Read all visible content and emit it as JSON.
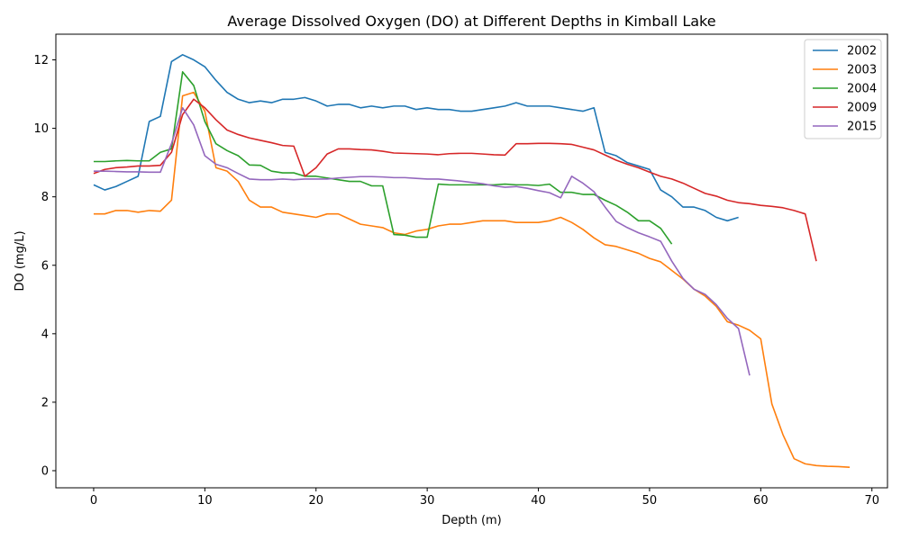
{
  "chart_data": {
    "type": "line",
    "title": "Average Dissolved Oxygen (DO) at Different Depths in Kimball Lake",
    "xlabel": "Depth (m)",
    "ylabel": "DO (mg/L)",
    "xlim": [
      -3.4,
      71.4
    ],
    "ylim": [
      -0.5,
      12.75
    ],
    "xticks": [
      0,
      10,
      20,
      30,
      40,
      50,
      60,
      70
    ],
    "yticks": [
      0,
      2,
      4,
      6,
      8,
      10,
      12
    ],
    "grid": false,
    "legend_position": "top-right",
    "series": [
      {
        "name": "2002",
        "color": "#1f77b4",
        "x": [
          0,
          1,
          2,
          3,
          4,
          5,
          6,
          7,
          8,
          9,
          10,
          11,
          12,
          13,
          14,
          15,
          16,
          17,
          18,
          19,
          20,
          21,
          22,
          23,
          24,
          25,
          26,
          27,
          28,
          29,
          30,
          31,
          32,
          33,
          34,
          35,
          36,
          37,
          38,
          39,
          40,
          41,
          42,
          43,
          44,
          45,
          46,
          47,
          48,
          49,
          50,
          51,
          52,
          53,
          54,
          55,
          56,
          57,
          58
        ],
        "y": [
          8.35,
          8.2,
          8.3,
          8.45,
          8.6,
          10.2,
          10.35,
          11.95,
          12.15,
          12.0,
          11.8,
          11.4,
          11.05,
          10.85,
          10.75,
          10.8,
          10.75,
          10.85,
          10.85,
          10.9,
          10.8,
          10.65,
          10.7,
          10.7,
          10.6,
          10.65,
          10.6,
          10.65,
          10.65,
          10.55,
          10.6,
          10.55,
          10.55,
          10.5,
          10.5,
          10.55,
          10.6,
          10.65,
          10.75,
          10.65,
          10.65,
          10.65,
          10.6,
          10.55,
          10.5,
          10.6,
          9.3,
          9.2,
          9.0,
          8.9,
          8.8,
          8.2,
          8.0,
          7.7,
          7.7,
          7.6,
          7.4,
          7.3,
          7.4
        ]
      },
      {
        "name": "2003",
        "color": "#ff7f0e",
        "x": [
          0,
          1,
          2,
          3,
          4,
          5,
          6,
          7,
          8,
          9,
          10,
          11,
          12,
          13,
          14,
          15,
          16,
          17,
          18,
          19,
          20,
          21,
          22,
          23,
          24,
          25,
          26,
          27,
          28,
          29,
          30,
          31,
          32,
          33,
          34,
          35,
          36,
          37,
          38,
          39,
          40,
          41,
          42,
          43,
          44,
          45,
          46,
          47,
          48,
          49,
          50,
          51,
          52,
          53,
          54,
          55,
          56,
          57,
          58,
          59,
          60,
          61,
          62,
          63,
          64,
          65,
          66,
          67,
          68
        ],
        "y": [
          7.5,
          7.5,
          7.6,
          7.6,
          7.55,
          7.6,
          7.58,
          7.9,
          10.95,
          11.05,
          10.5,
          8.85,
          8.75,
          8.45,
          7.9,
          7.7,
          7.7,
          7.55,
          7.5,
          7.45,
          7.4,
          7.5,
          7.5,
          7.35,
          7.2,
          7.15,
          7.1,
          6.95,
          6.9,
          7.0,
          7.05,
          7.15,
          7.2,
          7.2,
          7.25,
          7.3,
          7.3,
          7.3,
          7.25,
          7.25,
          7.25,
          7.3,
          7.4,
          7.25,
          7.05,
          6.8,
          6.6,
          6.55,
          6.45,
          6.35,
          6.2,
          6.1,
          5.85,
          5.6,
          5.3,
          5.1,
          4.8,
          4.35,
          4.25,
          4.1,
          3.85,
          1.95,
          1.05,
          0.35,
          0.2,
          0.15,
          0.13,
          0.12,
          0.1
        ]
      },
      {
        "name": "2004",
        "color": "#2ca02c",
        "x": [
          0,
          1,
          2,
          3,
          4,
          5,
          6,
          7,
          8,
          9,
          10,
          11,
          12,
          13,
          14,
          15,
          16,
          17,
          18,
          19,
          20,
          21,
          22,
          23,
          24,
          25,
          26,
          27,
          28,
          29,
          30,
          31,
          32,
          33,
          34,
          35,
          36,
          37,
          38,
          39,
          40,
          41,
          42,
          43,
          44,
          45,
          46,
          47,
          48,
          49,
          50,
          51,
          52
        ],
        "y": [
          9.03,
          9.03,
          9.05,
          9.06,
          9.05,
          9.05,
          9.3,
          9.4,
          11.65,
          11.25,
          10.2,
          9.55,
          9.35,
          9.2,
          8.93,
          8.92,
          8.75,
          8.7,
          8.7,
          8.6,
          8.6,
          8.55,
          8.5,
          8.45,
          8.45,
          8.32,
          8.32,
          6.9,
          6.88,
          6.82,
          6.82,
          8.37,
          8.35,
          8.35,
          8.35,
          8.35,
          8.35,
          8.37,
          8.35,
          8.35,
          8.33,
          8.37,
          8.13,
          8.13,
          8.07,
          8.07,
          7.9,
          7.75,
          7.55,
          7.3,
          7.3,
          7.08,
          6.62
        ]
      },
      {
        "name": "2009",
        "color": "#d62728",
        "x": [
          0,
          1,
          2,
          3,
          4,
          5,
          6,
          7,
          8,
          9,
          10,
          11,
          12,
          13,
          14,
          15,
          16,
          17,
          18,
          19,
          20,
          21,
          22,
          23,
          24,
          25,
          26,
          27,
          28,
          29,
          30,
          31,
          32,
          33,
          34,
          35,
          36,
          37,
          38,
          39,
          40,
          41,
          42,
          43,
          44,
          45,
          46,
          47,
          48,
          49,
          50,
          51,
          52,
          53,
          54,
          55,
          56,
          57,
          58,
          59,
          60,
          61,
          62,
          63,
          64,
          65
        ],
        "y": [
          8.68,
          8.8,
          8.85,
          8.87,
          8.9,
          8.9,
          8.92,
          9.3,
          10.4,
          10.85,
          10.6,
          10.25,
          9.95,
          9.82,
          9.72,
          9.65,
          9.58,
          9.5,
          9.48,
          8.6,
          8.85,
          9.25,
          9.4,
          9.4,
          9.38,
          9.37,
          9.33,
          9.28,
          9.27,
          9.26,
          9.25,
          9.23,
          9.26,
          9.27,
          9.27,
          9.25,
          9.23,
          9.22,
          9.55,
          9.55,
          9.56,
          9.56,
          9.55,
          9.53,
          9.45,
          9.37,
          9.22,
          9.07,
          8.95,
          8.85,
          8.72,
          8.6,
          8.52,
          8.4,
          8.25,
          8.1,
          8.02,
          7.9,
          7.83,
          7.8,
          7.75,
          7.72,
          7.68,
          7.6,
          7.5,
          6.12
        ]
      },
      {
        "name": "2015",
        "color": "#9467bd",
        "x": [
          0,
          1,
          2,
          3,
          4,
          5,
          6,
          7,
          8,
          9,
          10,
          11,
          12,
          13,
          14,
          15,
          16,
          17,
          18,
          19,
          20,
          21,
          22,
          23,
          24,
          25,
          26,
          27,
          28,
          29,
          30,
          31,
          32,
          33,
          34,
          35,
          36,
          37,
          38,
          39,
          40,
          41,
          42,
          43,
          44,
          45,
          46,
          47,
          48,
          49,
          50,
          51,
          52,
          53,
          54,
          55,
          56,
          57,
          58,
          59
        ],
        "y": [
          8.75,
          8.75,
          8.74,
          8.73,
          8.73,
          8.72,
          8.72,
          9.55,
          10.6,
          10.1,
          9.2,
          8.95,
          8.85,
          8.68,
          8.52,
          8.5,
          8.5,
          8.52,
          8.5,
          8.52,
          8.52,
          8.52,
          8.55,
          8.57,
          8.59,
          8.59,
          8.58,
          8.56,
          8.56,
          8.54,
          8.52,
          8.52,
          8.49,
          8.46,
          8.42,
          8.38,
          8.32,
          8.28,
          8.3,
          8.25,
          8.18,
          8.12,
          7.97,
          8.6,
          8.4,
          8.15,
          7.7,
          7.28,
          7.1,
          6.95,
          6.83,
          6.7,
          6.12,
          5.62,
          5.3,
          5.15,
          4.85,
          4.45,
          4.15,
          2.78
        ]
      }
    ]
  }
}
